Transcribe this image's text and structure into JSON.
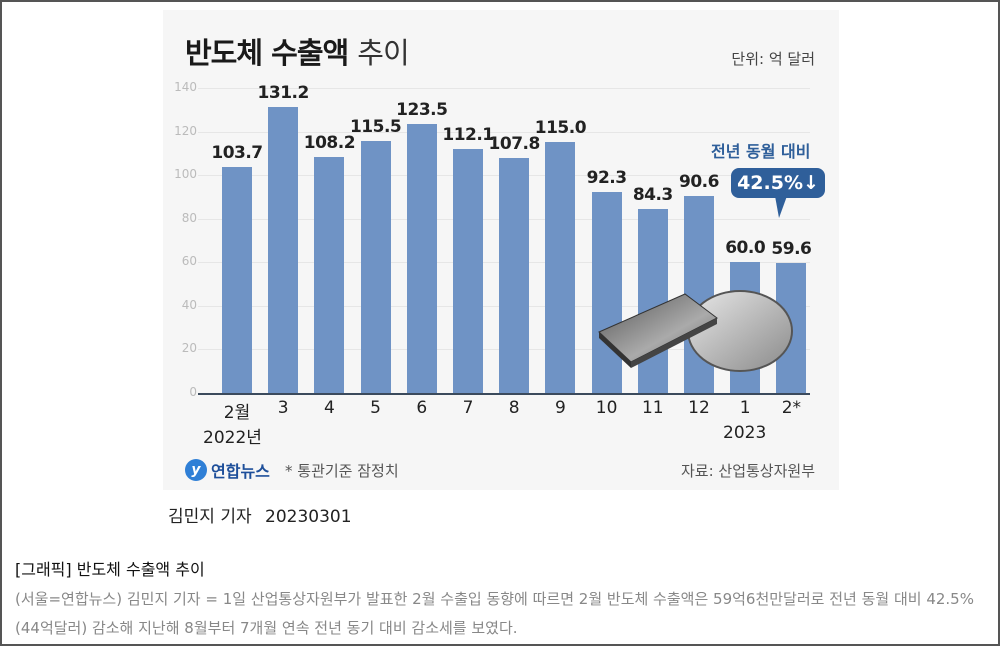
{
  "chart": {
    "title_bold": "반도체 수출액",
    "title_light": "추이",
    "unit": "단위: 억 달러",
    "y_ticks": [
      "140",
      "120",
      "100",
      "80",
      "60",
      "40",
      "20",
      "0"
    ],
    "callout_label": "전년 동월 대비",
    "callout_value": "42.5%↓",
    "year_left": "2022년",
    "year_right": "2023",
    "logo_mark": "y",
    "logo_text": "연합뉴스",
    "note": "* 통관기준 잠정치",
    "source": "자료: 산업통상자원부"
  },
  "chart_data": {
    "type": "bar",
    "title": "반도체 수출액 추이",
    "unit": "억 달러",
    "categories": [
      "2월",
      "3",
      "4",
      "5",
      "6",
      "7",
      "8",
      "9",
      "10",
      "11",
      "12",
      "1",
      "2*"
    ],
    "values": [
      103.7,
      131.2,
      108.2,
      115.5,
      123.5,
      112.1,
      107.8,
      115.0,
      92.3,
      84.3,
      90.6,
      60.0,
      59.6
    ],
    "value_labels": [
      "103.7",
      "131.2",
      "108.2",
      "115.5",
      "123.5",
      "112.1",
      "107.8",
      "115.0",
      "92.3",
      "84.3",
      "90.6",
      "60.0",
      "59.6"
    ],
    "year_labels": {
      "2022년": "2월",
      "2023": "1"
    },
    "ylim": [
      0,
      140
    ],
    "yticks": [
      0,
      20,
      40,
      60,
      80,
      100,
      120,
      140
    ],
    "grid": true,
    "bar_color": "#6f93c5",
    "annotation": "전년 동월 대비 42.5%↓",
    "footnote": "* 통관기준 잠정치",
    "source": "자료: 산업통상자원부"
  },
  "byline": {
    "author": "김민지 기자",
    "date": "20230301"
  },
  "caption": {
    "title": "[그래픽] 반도체 수출액 추이",
    "body": "(서울=연합뉴스) 김민지 기자 = 1일 산업통상자원부가 발표한 2월 수출입 동향에 따르면 2월 반도체 수출액은 59억6천만달러로 전년 동월 대비 42.5%(44억달러) 감소해 지난해 8월부터 7개월 연속 전년 동기 대비 감소세를 보였다."
  }
}
